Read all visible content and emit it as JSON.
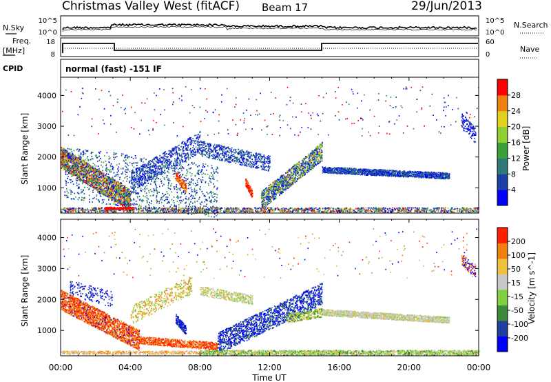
{
  "header": {
    "station": "Christmas Valley West (fitACF)",
    "beam": "Beam 17",
    "date": "29/Jun/2013"
  },
  "noise_panel": {
    "left_label": "N.Sky",
    "right_label": "N.Search",
    "left_ticks": [
      "10^5",
      "10^0"
    ],
    "right_ticks": [
      "10^5",
      "10^0"
    ]
  },
  "freq_panel": {
    "left_label_line1": "Freq.",
    "left_label_line2": "[MHz]",
    "right_label": "Nave",
    "left_ticks": [
      "18",
      "8"
    ],
    "right_ticks": [
      "60",
      "0"
    ]
  },
  "cpid": {
    "label": "CPID",
    "text": "normal (fast) -151 IF"
  },
  "chart_data": [
    {
      "type": "heatmap",
      "name": "power",
      "ylabel": "Slant Range [km]",
      "yticks": [
        "4000",
        "3000",
        "2000",
        "1000"
      ],
      "ylim": [
        180,
        4590
      ],
      "colorbar_label": "Power [dB]",
      "colorbar_ticks": [
        "28",
        "24",
        "20",
        "16",
        "12",
        "8",
        "4"
      ],
      "colorbar_range": [
        0,
        32
      ],
      "colors": [
        "#0000ff",
        "#1c3faa",
        "#2e7a7a",
        "#3aa03a",
        "#90cf30",
        "#e0d020",
        "#f08010",
        "#ff0000"
      ]
    },
    {
      "type": "heatmap",
      "name": "velocity",
      "ylabel": "Slant Range [km]",
      "yticks": [
        "4000",
        "3000",
        "2000",
        "1000"
      ],
      "ylim": [
        180,
        4590
      ],
      "colorbar_label": "Velocity [m s^-1]",
      "colorbar_ticks": [
        "200",
        "100",
        "50",
        "15",
        "-15",
        "-50",
        "-100",
        "-200"
      ],
      "colors": [
        "#0000ff",
        "#2040a0",
        "#3a8a3a",
        "#80d040",
        "#c8c8c8",
        "#f0c040",
        "#f08010",
        "#ff2000"
      ]
    }
  ],
  "xaxis": {
    "ticks": [
      "00:00",
      "04:00",
      "08:00",
      "12:00",
      "16:00",
      "20:00",
      "00:00"
    ],
    "label": "Time UT"
  }
}
